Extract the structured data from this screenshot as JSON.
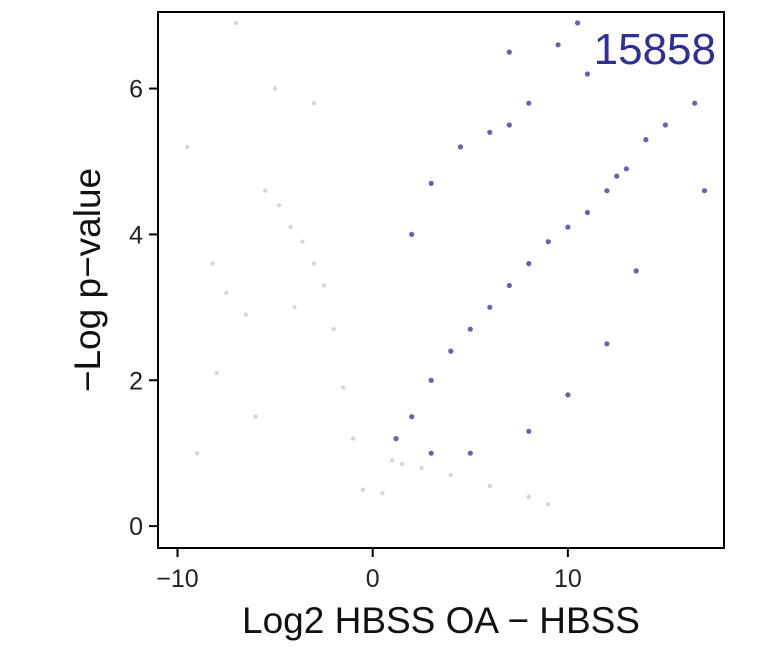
{
  "chart_data": {
    "type": "scatter",
    "title": "",
    "xlabel": "Log2 HBSS OA − HBSS",
    "ylabel": "−Log p−value",
    "xlim": [
      -11,
      18
    ],
    "ylim": [
      -0.3,
      7.05
    ],
    "x_ticks": [
      -10,
      0,
      10
    ],
    "x_tick_labels": [
      "−10",
      "0",
      "10"
    ],
    "y_ticks": [
      0,
      2,
      4,
      6
    ],
    "y_tick_labels": [
      "0",
      "2",
      "4",
      "6"
    ],
    "grid": false,
    "legend": "none",
    "annotations": [
      {
        "text": "15858",
        "color": "#2e3192",
        "placement": "top-right"
      }
    ],
    "colors": {
      "significant": "#2e3192",
      "nonsignificant": "#8a8a8a"
    },
    "series": [
      {
        "role": "nonsignificant",
        "color": "#8a8a8a",
        "points": [
          [
            -9.5,
            5.2
          ],
          [
            -7.0,
            6.9
          ],
          [
            -8.2,
            3.6
          ],
          [
            -7.5,
            3.2
          ],
          [
            -9.0,
            1.0
          ],
          [
            -8.0,
            2.1
          ],
          [
            -6.5,
            2.9
          ],
          [
            -5.5,
            4.6
          ],
          [
            -4.8,
            4.4
          ],
          [
            -4.2,
            4.1
          ],
          [
            -3.6,
            3.9
          ],
          [
            -3.0,
            3.6
          ],
          [
            -2.5,
            3.3
          ],
          [
            -2.0,
            2.7
          ],
          [
            -1.5,
            1.9
          ],
          [
            -1.0,
            1.2
          ],
          [
            -0.5,
            0.5
          ],
          [
            0.5,
            0.45
          ],
          [
            1.0,
            0.9
          ],
          [
            1.5,
            0.85
          ],
          [
            2.5,
            0.8
          ],
          [
            4.0,
            0.7
          ],
          [
            6.0,
            0.55
          ],
          [
            8.0,
            0.4
          ],
          [
            9.0,
            0.3
          ],
          [
            -5.0,
            6.0
          ],
          [
            -3.0,
            5.8
          ],
          [
            -4.0,
            3.0
          ],
          [
            -6.0,
            1.5
          ]
        ]
      },
      {
        "role": "significant",
        "color": "#2e3192",
        "count_label": "15858",
        "points": [
          [
            1.2,
            1.2
          ],
          [
            2.0,
            1.5
          ],
          [
            3.0,
            2.0
          ],
          [
            4.0,
            2.4
          ],
          [
            5.0,
            2.7
          ],
          [
            6.0,
            3.0
          ],
          [
            7.0,
            3.3
          ],
          [
            8.0,
            3.6
          ],
          [
            9.0,
            3.9
          ],
          [
            10.0,
            4.1
          ],
          [
            11.0,
            4.3
          ],
          [
            12.0,
            4.6
          ],
          [
            13.0,
            4.9
          ],
          [
            14.0,
            5.3
          ],
          [
            15.0,
            5.5
          ],
          [
            16.5,
            5.8
          ],
          [
            17.0,
            4.6
          ],
          [
            2.0,
            4.0
          ],
          [
            3.0,
            4.7
          ],
          [
            4.5,
            5.2
          ],
          [
            6.0,
            5.4
          ],
          [
            7.0,
            5.5
          ],
          [
            8.0,
            5.8
          ],
          [
            9.5,
            6.6
          ],
          [
            11.0,
            6.2
          ],
          [
            12.5,
            4.8
          ],
          [
            13.5,
            3.5
          ],
          [
            12.0,
            2.5
          ],
          [
            10.0,
            1.8
          ],
          [
            8.0,
            1.3
          ],
          [
            5.0,
            1.0
          ],
          [
            3.0,
            1.0
          ],
          [
            7.0,
            6.5
          ],
          [
            10.5,
            6.9
          ]
        ]
      }
    ]
  }
}
